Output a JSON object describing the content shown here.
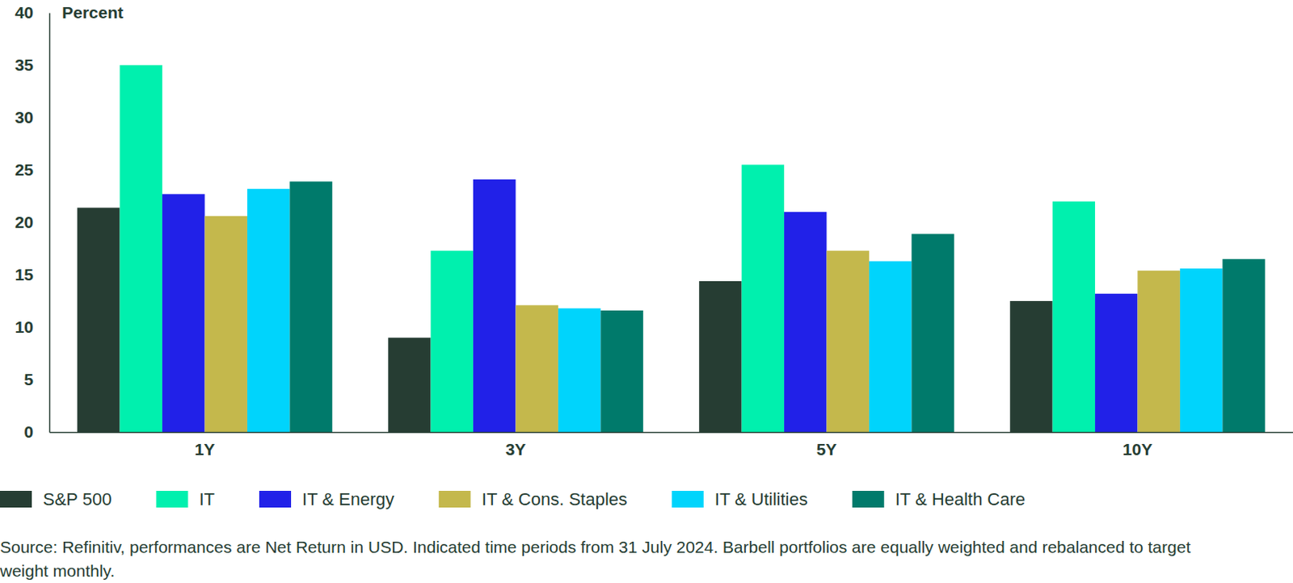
{
  "chart_data": {
    "type": "bar",
    "y_label": "Percent",
    "footnote": "Source: Refinitiv, performances are Net Return in USD. Indicated time periods from 31 July 2024. Barbell portfolios are equally weighted and rebalanced to target weight monthly.",
    "categories": [
      "1Y",
      "3Y",
      "5Y",
      "10Y"
    ],
    "series": [
      {
        "name": "S&P 500",
        "color": "#263d33",
        "values": [
          21.4,
          9.0,
          14.4,
          12.5
        ]
      },
      {
        "name": "IT",
        "color": "#00f0ae",
        "values": [
          35.0,
          17.3,
          25.5,
          22.0
        ]
      },
      {
        "name": "IT & Energy",
        "color": "#2121e8",
        "values": [
          22.7,
          24.1,
          21.0,
          13.2
        ]
      },
      {
        "name": "IT & Cons. Staples",
        "color": "#c4b84c",
        "values": [
          20.6,
          12.1,
          17.3,
          15.4
        ]
      },
      {
        "name": "IT & Utilities",
        "color": "#00d4fc",
        "values": [
          23.2,
          11.8,
          16.3,
          15.6
        ]
      },
      {
        "name": "IT & Health Care",
        "color": "#007a6b",
        "values": [
          23.9,
          11.6,
          18.9,
          16.5
        ]
      }
    ],
    "ylim": [
      0,
      40
    ],
    "yticks": [
      0,
      5,
      10,
      15,
      20,
      25,
      30,
      35,
      40
    ],
    "grid": false,
    "legend": "bottom"
  }
}
